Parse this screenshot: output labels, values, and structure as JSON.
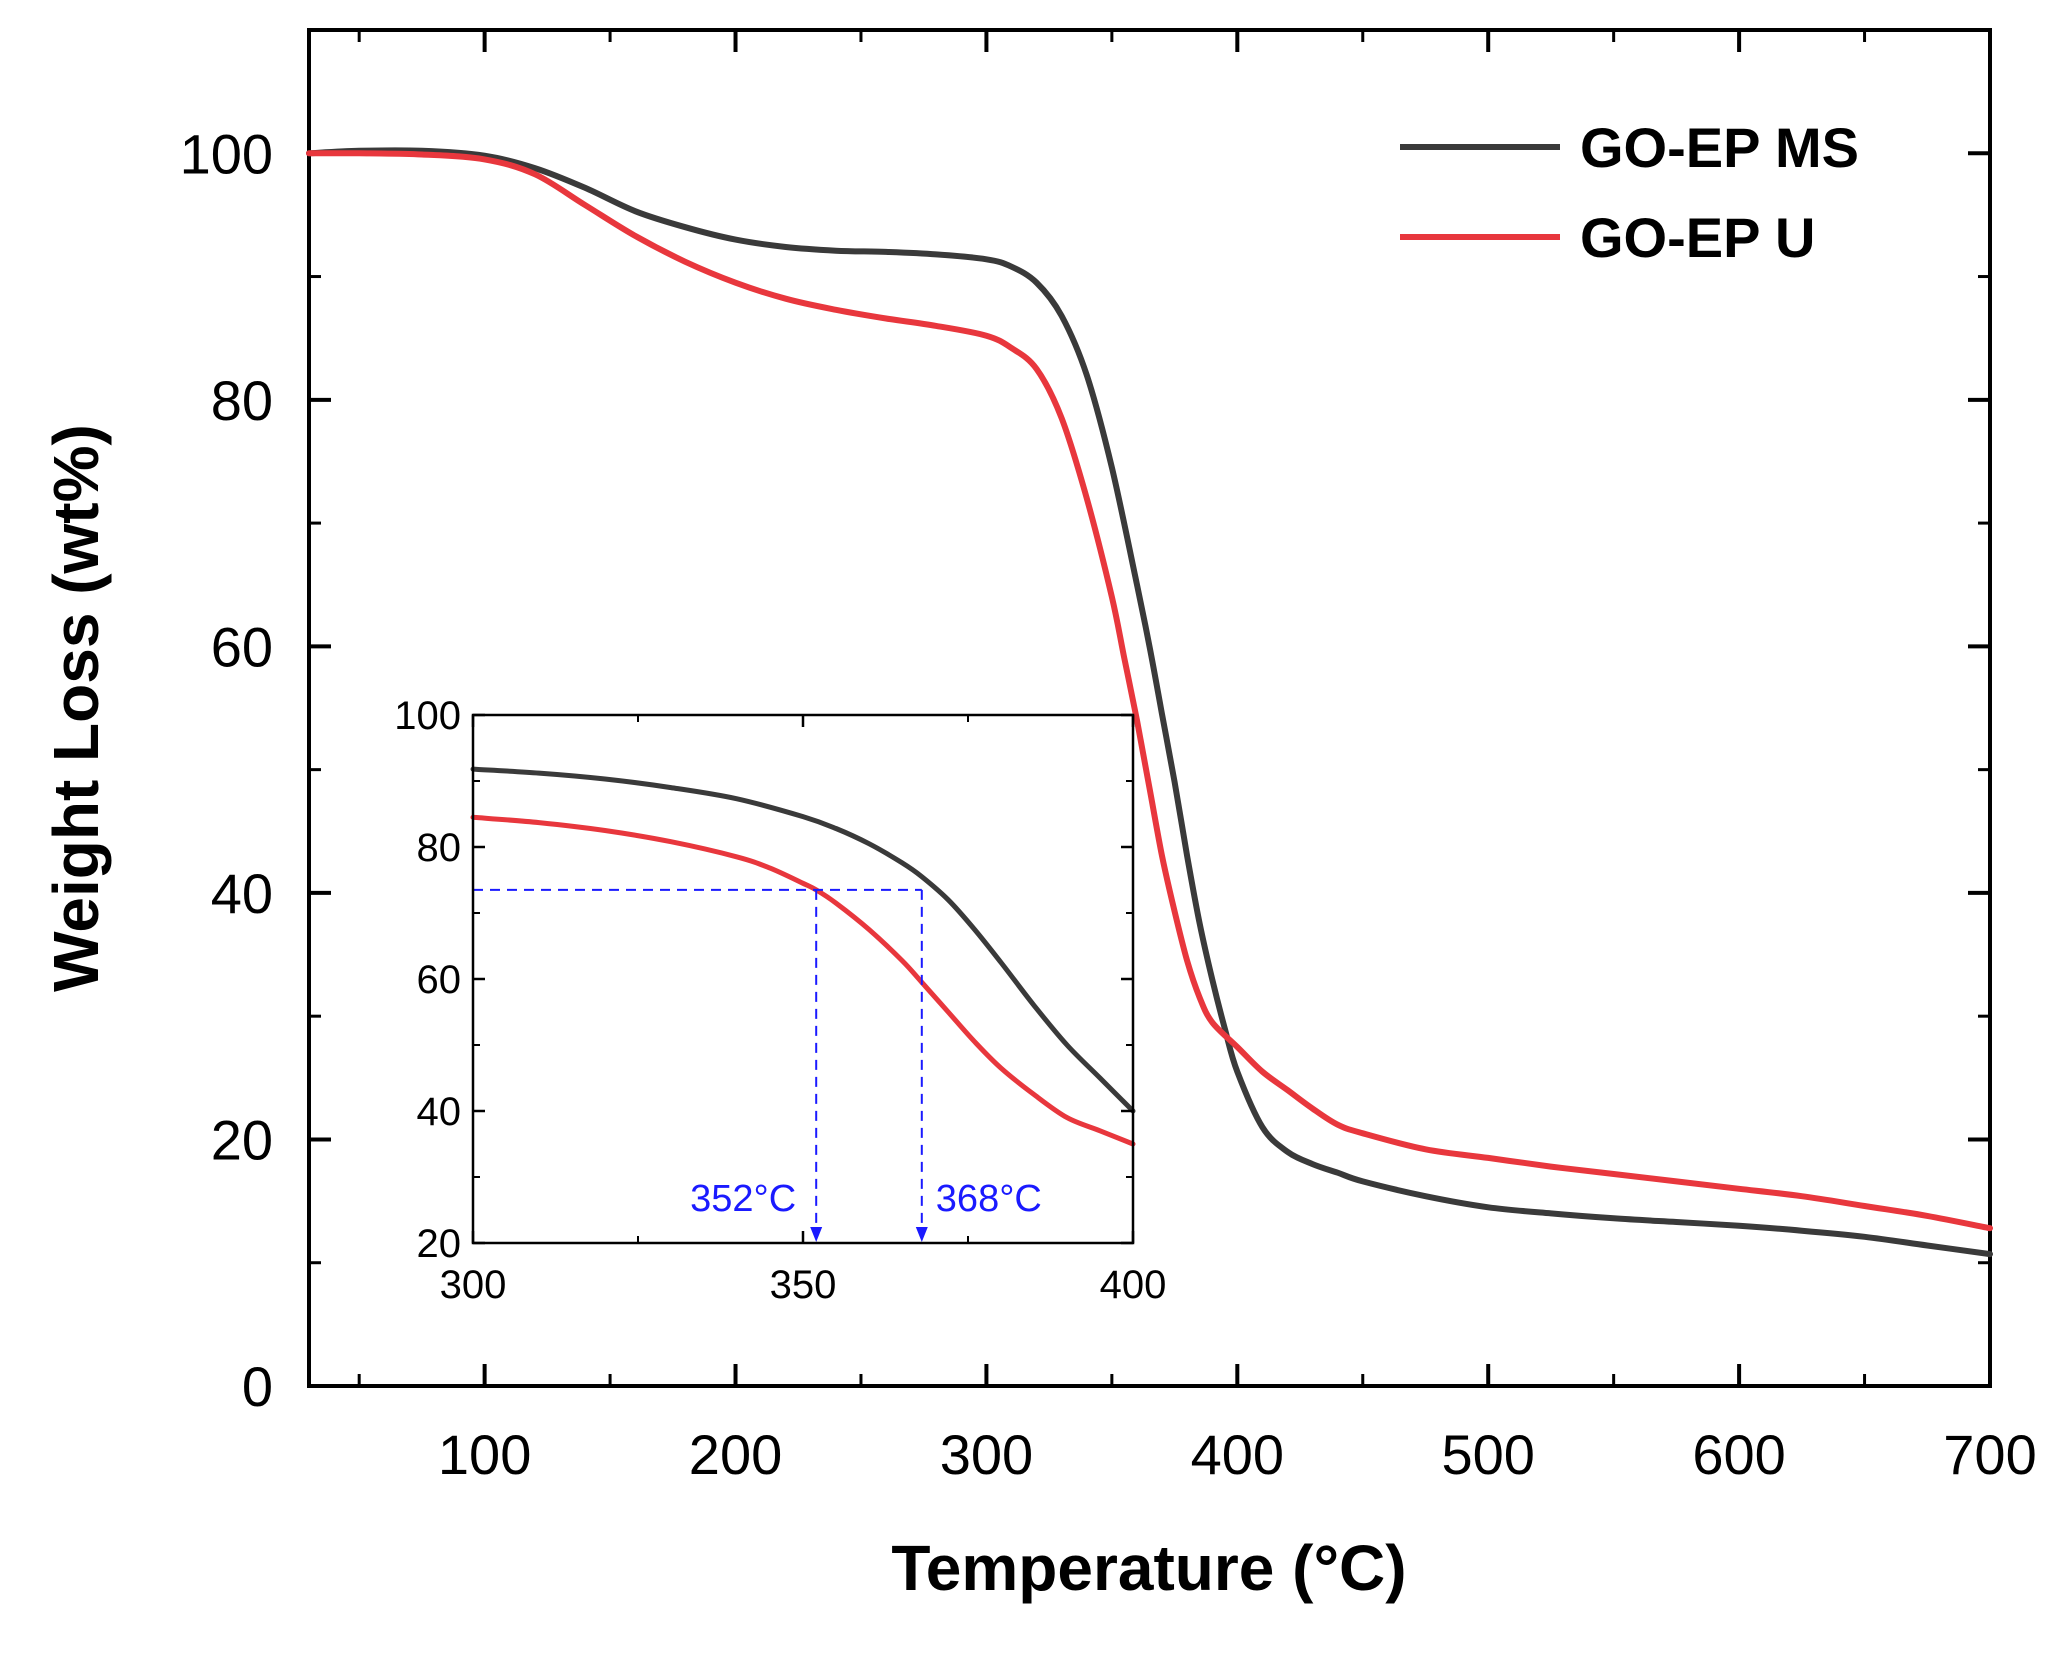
{
  "chart_data": {
    "type": "line",
    "title": "",
    "xlabel": "Temperature (°C)",
    "ylabel": "Weight Loss (wt%)",
    "xlim": [
      30,
      700
    ],
    "ylim": [
      0,
      110
    ],
    "x_ticks": [
      100,
      200,
      300,
      400,
      500,
      600,
      700
    ],
    "y_ticks": [
      0,
      20,
      40,
      60,
      80,
      100
    ],
    "x_tick_labels": [
      "100",
      "200",
      "300",
      "400",
      "500",
      "600",
      "700"
    ],
    "y_tick_labels": [
      "0",
      "20",
      "40",
      "60",
      "80",
      "100"
    ],
    "legend_position": "top-right",
    "series": [
      {
        "name": "GO-EP MS",
        "color": "#3a3a3a",
        "x": [
          30,
          50,
          75,
          100,
          120,
          140,
          160,
          180,
          200,
          220,
          240,
          260,
          280,
          300,
          310,
          320,
          330,
          340,
          350,
          360,
          365,
          370,
          375,
          380,
          385,
          390,
          395,
          400,
          410,
          420,
          430,
          440,
          450,
          475,
          500,
          525,
          550,
          575,
          600,
          625,
          650,
          675,
          700
        ],
        "y": [
          100,
          100.2,
          100.2,
          99.8,
          98.8,
          97.2,
          95.3,
          94.0,
          93.0,
          92.4,
          92.1,
          92.0,
          91.8,
          91.4,
          90.8,
          89.5,
          86.8,
          82.0,
          74.5,
          65.0,
          60.0,
          54.5,
          49.0,
          43.0,
          37.5,
          33.0,
          29.0,
          25.5,
          21.0,
          19.0,
          18.0,
          17.3,
          16.6,
          15.4,
          14.5,
          14.0,
          13.6,
          13.3,
          13.0,
          12.6,
          12.1,
          11.4,
          10.7
        ]
      },
      {
        "name": "GO-EP U",
        "color": "#e8373d",
        "x": [
          30,
          50,
          75,
          100,
          120,
          140,
          160,
          180,
          200,
          220,
          240,
          260,
          280,
          300,
          310,
          320,
          330,
          340,
          350,
          355,
          360,
          365,
          370,
          375,
          380,
          385,
          390,
          400,
          410,
          420,
          430,
          440,
          450,
          475,
          500,
          525,
          550,
          575,
          600,
          625,
          650,
          675,
          700
        ],
        "y": [
          100,
          100.0,
          99.9,
          99.5,
          98.3,
          95.8,
          93.3,
          91.2,
          89.5,
          88.2,
          87.3,
          86.6,
          86.0,
          85.2,
          84.2,
          82.5,
          78.5,
          72.0,
          64.0,
          59.0,
          54.0,
          48.5,
          43.0,
          38.5,
          34.5,
          31.5,
          29.5,
          27.5,
          25.5,
          24.0,
          22.5,
          21.2,
          20.5,
          19.2,
          18.5,
          17.8,
          17.2,
          16.6,
          16.0,
          15.4,
          14.6,
          13.8,
          12.8
        ]
      }
    ],
    "inset": {
      "xlim": [
        300,
        400
      ],
      "ylim": [
        20,
        100
      ],
      "x_ticks": [
        300,
        350,
        400
      ],
      "y_ticks": [
        20,
        40,
        60,
        80,
        100
      ],
      "x_tick_labels": [
        "300",
        "350",
        "400"
      ],
      "y_tick_labels": [
        "20",
        "40",
        "60",
        "80",
        "100"
      ],
      "series": [
        {
          "name": "GO-EP MS",
          "color": "#3a3a3a",
          "x": [
            300,
            310,
            320,
            330,
            340,
            350,
            355,
            360,
            365,
            368,
            372,
            376,
            380,
            385,
            390,
            395,
            400
          ],
          "y": [
            91.8,
            91.2,
            90.3,
            89.0,
            87.3,
            84.6,
            82.8,
            80.5,
            77.6,
            75.5,
            72.0,
            67.5,
            62.5,
            56.0,
            50.0,
            45.0,
            40.0
          ]
        },
        {
          "name": "GO-EP U",
          "color": "#e8373d",
          "x": [
            300,
            310,
            320,
            330,
            340,
            345,
            350,
            352,
            355,
            360,
            365,
            368,
            372,
            376,
            380,
            385,
            390,
            395,
            400
          ],
          "y": [
            84.5,
            83.7,
            82.5,
            80.8,
            78.5,
            76.8,
            74.5,
            73.5,
            71.5,
            67.5,
            62.8,
            59.5,
            55.0,
            50.5,
            46.5,
            42.5,
            39.0,
            37.0,
            35.0
          ]
        }
      ],
      "reference_level": 73.5,
      "annotations": [
        {
          "label": "352°C",
          "x": 352,
          "color": "#1a1aff"
        },
        {
          "label": "368°C",
          "x": 368,
          "color": "#1a1aff"
        }
      ]
    }
  }
}
